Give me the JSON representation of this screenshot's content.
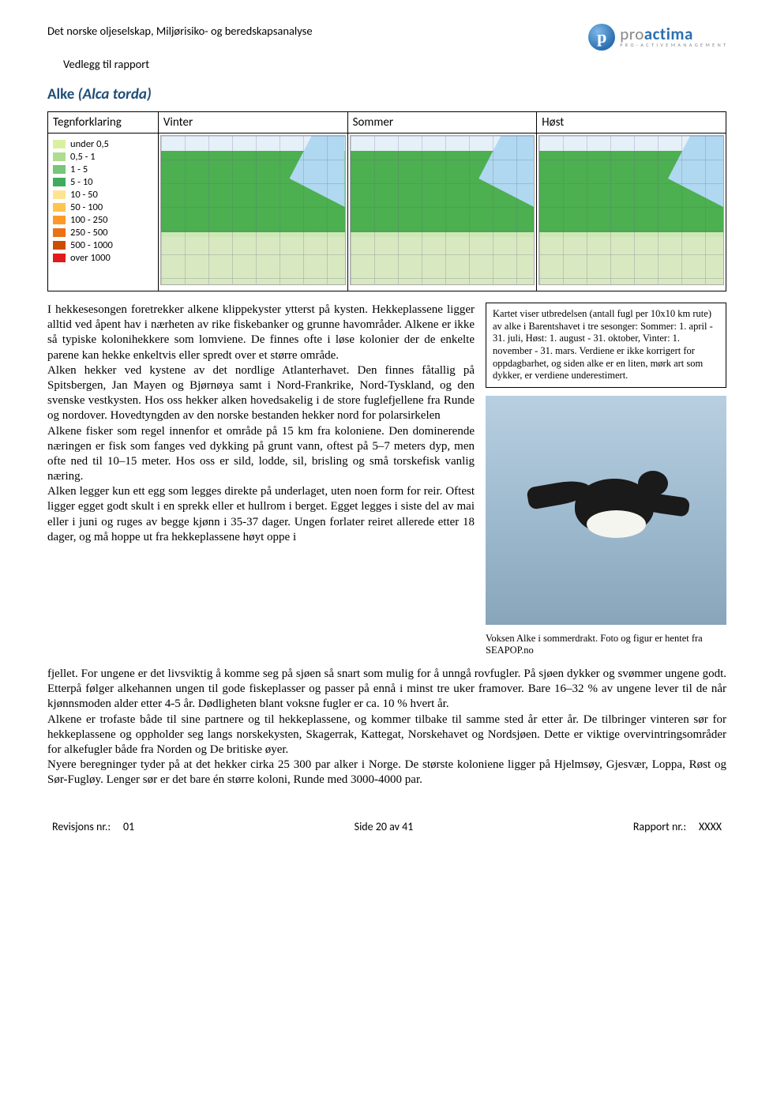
{
  "header": {
    "title": "Det norske oljeselskap, Miljørisiko- og beredskapsanalyse",
    "subtitle": "Vedlegg til rapport"
  },
  "logo": {
    "letter": "p",
    "main_pre": "pro",
    "main_bold": "actima",
    "sub": "P R O - A C T I V E   M A N A G E M E N T"
  },
  "species": {
    "name": "Alke",
    "latin": "(Alca torda)"
  },
  "map_table": {
    "headers": [
      "Tegnforklaring",
      "Vinter",
      "Sommer",
      "Høst"
    ]
  },
  "legend": {
    "items": [
      {
        "label": "under 0,5",
        "color": "#d9f0a3"
      },
      {
        "label": "0,5 - 1",
        "color": "#addd8e"
      },
      {
        "label": "1 - 5",
        "color": "#78c679"
      },
      {
        "label": "5 - 10",
        "color": "#41ab5d"
      },
      {
        "label": "10 - 50",
        "color": "#fee391"
      },
      {
        "label": "50 - 100",
        "color": "#fec44f"
      },
      {
        "label": "100 - 250",
        "color": "#fe9929"
      },
      {
        "label": "250 - 500",
        "color": "#ec7014"
      },
      {
        "label": "500 - 1000",
        "color": "#cc4c02"
      },
      {
        "label": "over 1000",
        "color": "#e31a1c"
      }
    ]
  },
  "body": {
    "left_para_1": "I hekkesesongen foretrekker alkene klippekyster ytterst på kysten. Hekkeplassene ligger alltid ved åpent hav i nærheten av rike fiskebanker og grunne havområder. Alkene er ikke så typiske kolonihekkere som lomviene. De finnes ofte i løse kolonier der de enkelte parene kan hekke enkeltvis eller spredt over et større område.",
    "left_para_2": "Alken hekker ved kystene av det nordlige Atlanterhavet. Den finnes fåtallig på Spitsbergen, Jan Mayen og Bjørnøya samt i Nord-Frankrike, Nord-Tyskland, og den svenske vestkysten. Hos oss hekker alken hovedsakelig i de store fuglefjellene fra Runde og nordover. Hovedtyngden av den norske bestanden hekker nord for polarsirkelen",
    "left_para_3": "Alkene fisker som regel innenfor et område på 15 km fra koloniene. Den dominerende næringen er fisk som fanges ved dykking på grunt vann, oftest på 5–7 meters dyp, men ofte ned til 10–15 meter. Hos oss er sild, lodde, sil, brisling og små torskefisk vanlig næring.",
    "left_para_4": "Alken legger kun ett egg som legges direkte på underlaget, uten noen form for reir. Oftest ligger egget godt skult i en sprekk eller et hullrom i berget. Egget legges i siste del av mai eller i juni og ruges av begge kjønn i 35-37 dager. Ungen forlater reiret allerede etter 18 dager, og må hoppe ut fra hekkeplassene høyt oppe i",
    "continuation": "fjellet. For ungene er det livsviktig å komme seg på sjøen så snart som mulig for å unngå rovfugler. På sjøen dykker og svømmer ungene godt. Etterpå følger alkehannen ungen til gode fiskeplasser og passer på ennå i minst tre uker framover. Bare 16–32 % av ungene lever til de når kjønnsmoden alder etter 4-5 år. Dødligheten blant voksne fugler er ca. 10 % hvert år.",
    "continuation_2": "Alkene er trofaste både til sine partnere og til hekkeplassene, og kommer tilbake til samme sted år etter år. De tilbringer vinteren sør for hekkeplassene og oppholder seg langs norskekysten, Skagerrak, Kattegat, Norskehavet og Nordsjøen. Dette er viktige overvintringsområder for alkefugler både fra Norden og De britiske øyer.",
    "continuation_3": "Nyere beregninger tyder på at det hekker cirka 25 300 par alker i Norge. De største koloniene ligger på Hjelmsøy, Gjesvær, Loppa, Røst og Sør-Fugløy. Lenger sør er det bare én større koloni, Runde med 3000-4000 par."
  },
  "info_box": "Kartet viser utbredelsen (antall fugl per 10x10 km rute) av alke  i Barentshavet i tre sesonger: Sommer: 1. april - 31. juli, Høst: 1. august - 31. oktober, Vinter: 1. november - 31. mars. Verdiene er ikke korrigert for oppdagbarhet, og siden alke er en liten, mørk art som dykker, er verdiene underestimert.",
  "photo_caption": "Voksen Alke i sommerdrakt. Foto og figur er hentet fra SEAPOP.no",
  "footer": {
    "rev_label": "Revisjons nr.:",
    "rev_val": "01",
    "page_label": "Side 20 av 41",
    "rep_label": "Rapport nr.:",
    "rep_val": "XXXX"
  }
}
